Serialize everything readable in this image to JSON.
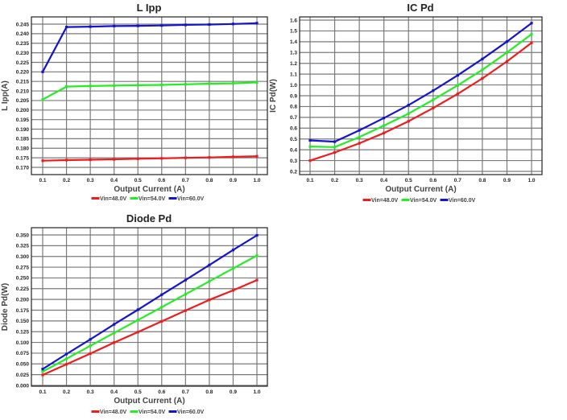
{
  "series_colors": {
    "Vin=48.0V": "#ee1c1c",
    "Vin=54.0V": "#22ee22",
    "Vin=60.0V": "#1414cc"
  },
  "chart_data": [
    {
      "type": "line",
      "title": "L Ipp",
      "xlabel": "Output Current (A)",
      "ylabel": "L Ipp(A)",
      "x": [
        0.1,
        0.2,
        0.3,
        0.4,
        0.5,
        0.6,
        0.7,
        0.8,
        0.9,
        1.0
      ],
      "xticks": [
        "0.1",
        "0.2",
        "0.3",
        "0.4",
        "0.5",
        "0.6",
        "0.7",
        "0.8",
        "0.9",
        "1.0"
      ],
      "ylim": [
        0.1675,
        0.2475
      ],
      "yticks": [
        "0.170",
        "0.175",
        "0.180",
        "0.185",
        "0.190",
        "0.195",
        "0.200",
        "0.205",
        "0.210",
        "0.215",
        "0.220",
        "0.225",
        "0.230",
        "0.235",
        "0.240",
        "0.245"
      ],
      "grid": true,
      "legend": "bottom",
      "series": [
        {
          "name": "Vin=48.0V",
          "values": [
            0.1735,
            0.1738,
            0.174,
            0.1742,
            0.1745,
            0.1747,
            0.175,
            0.1752,
            0.1755,
            0.1758
          ]
        },
        {
          "name": "Vin=54.0V",
          "values": [
            0.2055,
            0.2123,
            0.2126,
            0.2128,
            0.213,
            0.2132,
            0.2135,
            0.2138,
            0.214,
            0.2145
          ]
        },
        {
          "name": "Vin=60.0V",
          "values": [
            0.22,
            0.2435,
            0.2437,
            0.244,
            0.2441,
            0.2443,
            0.2446,
            0.2448,
            0.2451,
            0.2455
          ]
        }
      ]
    },
    {
      "type": "line",
      "title": "IC Pd",
      "xlabel": "Output Current (A)",
      "ylabel": "IC Pd(W)",
      "x": [
        0.1,
        0.2,
        0.3,
        0.4,
        0.5,
        0.6,
        0.7,
        0.8,
        0.9,
        1.0
      ],
      "xticks": [
        "0.1",
        "0.2",
        "0.3",
        "0.4",
        "0.5",
        "0.6",
        "0.7",
        "0.8",
        "0.9",
        "1.0"
      ],
      "ylim": [
        0.18,
        1.68
      ],
      "yticks": [
        "0.2",
        "0.3",
        "0.4",
        "0.5",
        "0.6",
        "0.7",
        "0.8",
        "0.9",
        "1.0",
        "1.1",
        "1.2",
        "1.3",
        "1.4",
        "1.5",
        "1.6"
      ],
      "grid": true,
      "legend": "bottom",
      "series": [
        {
          "name": "Vin=48.0V",
          "values": [
            0.3,
            0.375,
            0.46,
            0.555,
            0.664,
            0.786,
            0.917,
            1.06,
            1.217,
            1.39
          ]
        },
        {
          "name": "Vin=54.0V",
          "values": [
            0.43,
            0.425,
            0.517,
            0.624,
            0.735,
            0.862,
            0.996,
            1.14,
            1.3,
            1.47
          ]
        },
        {
          "name": "Vin=60.0V",
          "values": [
            0.487,
            0.475,
            0.58,
            0.694,
            0.813,
            0.947,
            1.089,
            1.24,
            1.401,
            1.572
          ]
        }
      ]
    },
    {
      "type": "line",
      "title": "Diode Pd",
      "xlabel": "Output Current (A)",
      "ylabel": "Diode Pd(W)",
      "x": [
        0.1,
        0.2,
        0.3,
        0.4,
        0.5,
        0.6,
        0.7,
        0.8,
        0.9,
        1.0
      ],
      "xticks": [
        "0.1",
        "0.2",
        "0.3",
        "0.4",
        "0.5",
        "0.6",
        "0.7",
        "0.8",
        "0.9",
        "1.0"
      ],
      "ylim": [
        0.0,
        0.3625
      ],
      "yticks": [
        "0.000",
        "0.025",
        "0.050",
        "0.075",
        "0.100",
        "0.125",
        "0.150",
        "0.175",
        "0.200",
        "0.225",
        "0.250",
        "0.275",
        "0.300",
        "0.325",
        "0.350"
      ],
      "grid": true,
      "legend": "bottom",
      "series": [
        {
          "name": "Vin=48.0V",
          "values": [
            0.0243,
            0.049,
            0.074,
            0.0996,
            0.124,
            0.149,
            0.174,
            0.199,
            0.221,
            0.245
          ]
        },
        {
          "name": "Vin=54.0V",
          "values": [
            0.032,
            0.062,
            0.092,
            0.122,
            0.152,
            0.182,
            0.212,
            0.242,
            0.272,
            0.302
          ]
        },
        {
          "name": "Vin=60.0V",
          "values": [
            0.038,
            0.073,
            0.107,
            0.142,
            0.176,
            0.211,
            0.245,
            0.28,
            0.315,
            0.349
          ]
        }
      ]
    }
  ]
}
